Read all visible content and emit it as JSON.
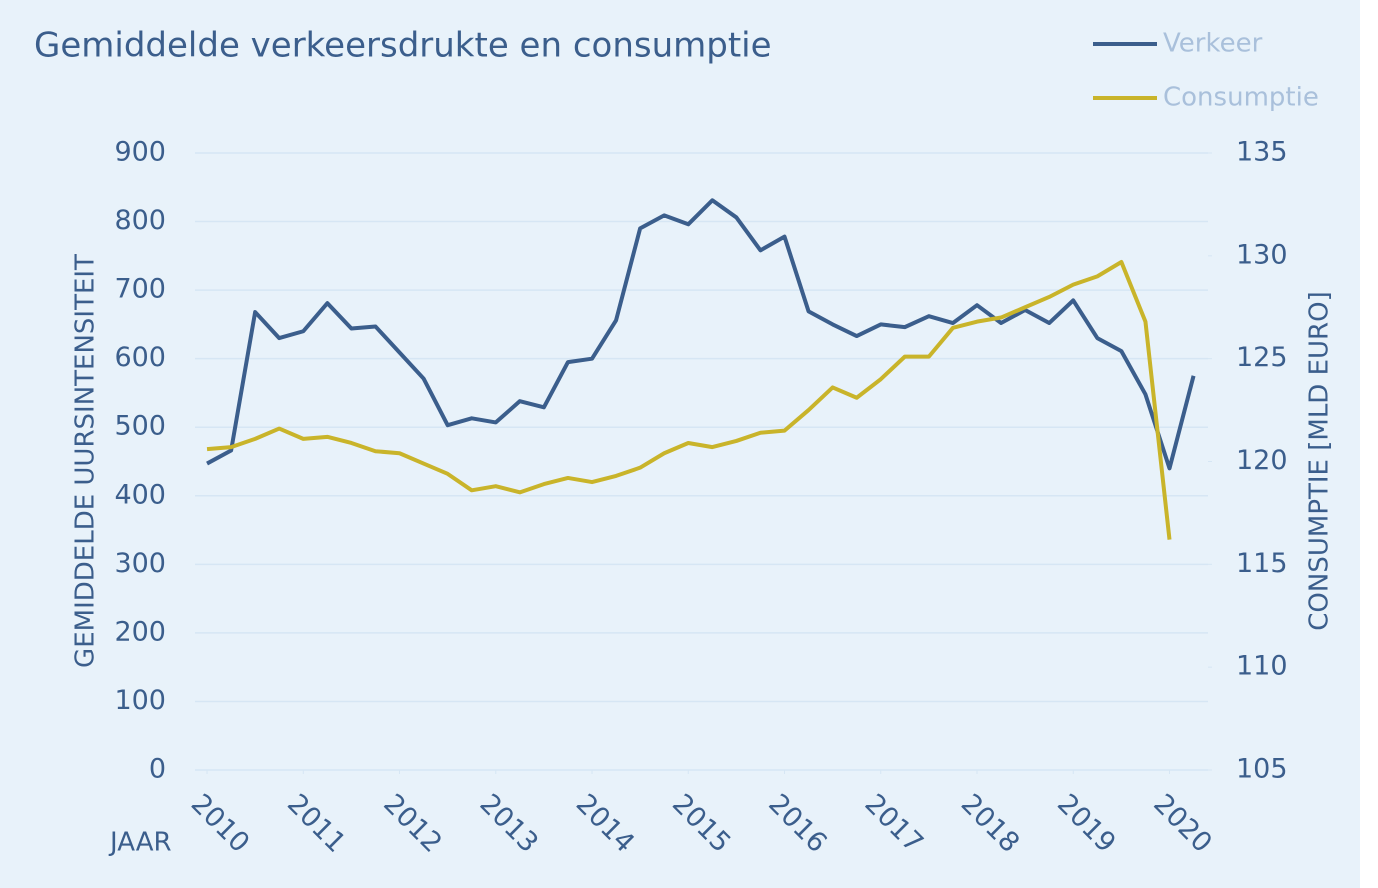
{
  "chart_data": {
    "type": "line",
    "title": "Gemiddelde  verkeersdrukte  en  consumptie",
    "xlabel": "JAAR",
    "ylabel": "GEMIDDELDE UURSINTENSITEIT",
    "y2label": "CONSUMPTIE [MLD EURO]",
    "x": [
      2010,
      2010.25,
      2010.5,
      2010.75,
      2011,
      2011.25,
      2011.5,
      2011.75,
      2012,
      2012.25,
      2012.5,
      2012.75,
      2013,
      2013.25,
      2013.5,
      2013.75,
      2014,
      2014.25,
      2014.5,
      2014.75,
      2015,
      2015.25,
      2015.5,
      2015.75,
      2016,
      2016.25,
      2016.5,
      2016.75,
      2017,
      2017.25,
      2017.5,
      2017.75,
      2018,
      2018.25,
      2018.5,
      2018.75,
      2019,
      2019.25,
      2019.5,
      2019.75,
      2020,
      2020.25
    ],
    "series": [
      {
        "name": "Verkeer",
        "color": "#3b5e8c",
        "axis": "y",
        "values": [
          447,
          466,
          668,
          630,
          640,
          681,
          644,
          647,
          609,
          571,
          503,
          513,
          507,
          538,
          529,
          595,
          600,
          656,
          790,
          809,
          796,
          831,
          806,
          758,
          778,
          669,
          650,
          633,
          650,
          646,
          662,
          652,
          678,
          652,
          671,
          652,
          685,
          630,
          611,
          548,
          440,
          575
        ]
      },
      {
        "name": "Consumptie",
        "color": "#c9b42a",
        "axis": "y2",
        "values": [
          120.6,
          120.7,
          121.1,
          121.6,
          121.1,
          121.2,
          120.9,
          120.5,
          120.4,
          119.9,
          119.4,
          118.6,
          118.8,
          118.5,
          118.9,
          119.2,
          119.0,
          119.3,
          119.7,
          120.4,
          120.9,
          120.7,
          121.0,
          121.4,
          121.5,
          122.5,
          123.6,
          123.1,
          124.0,
          125.1,
          125.1,
          126.5,
          126.8,
          127.0,
          127.5,
          128.0,
          128.6,
          129.0,
          129.7,
          126.8,
          116.2,
          null
        ]
      }
    ],
    "xlim": [
      2009.875,
      2020.4
    ],
    "xticks": [
      2010,
      2011,
      2012,
      2013,
      2014,
      2015,
      2016,
      2017,
      2018,
      2019,
      2020
    ],
    "ylim": [
      0,
      900
    ],
    "yticks": [
      0,
      100,
      200,
      300,
      400,
      500,
      600,
      700,
      800,
      900
    ],
    "y2lim": [
      105,
      135
    ],
    "y2ticks": [
      105,
      110,
      115,
      120,
      125,
      130,
      135
    ],
    "grid": true,
    "legend": "top-right"
  }
}
